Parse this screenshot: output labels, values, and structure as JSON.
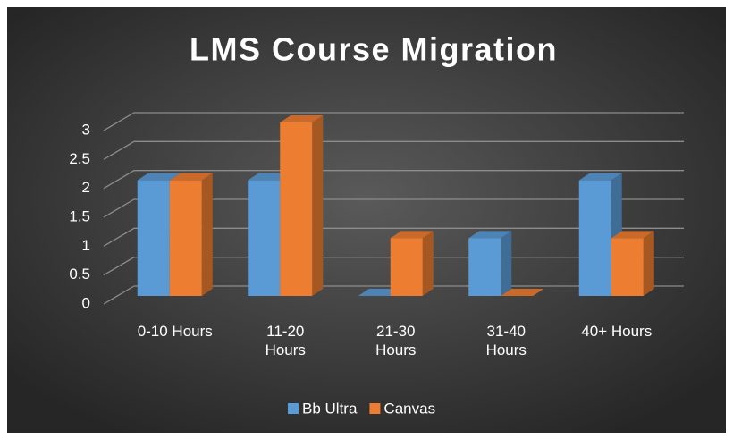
{
  "chart_data": {
    "type": "bar3d",
    "title": "LMS Course Migration",
    "categories": [
      "0-10 Hours",
      "11-20 Hours",
      "21-30 Hours",
      "31-40 Hours",
      "40+ Hours"
    ],
    "series": [
      {
        "name": "Bb Ultra",
        "color": "#5b9bd5",
        "values": [
          2,
          2,
          0,
          1,
          2
        ]
      },
      {
        "name": "Canvas",
        "color": "#ed7d31",
        "values": [
          2,
          3,
          1,
          0,
          1
        ]
      }
    ],
    "ylim": [
      0,
      3
    ],
    "yticks": [
      0,
      0.5,
      1,
      1.5,
      2,
      2.5,
      3
    ],
    "grid": true,
    "legend": "bottom"
  }
}
